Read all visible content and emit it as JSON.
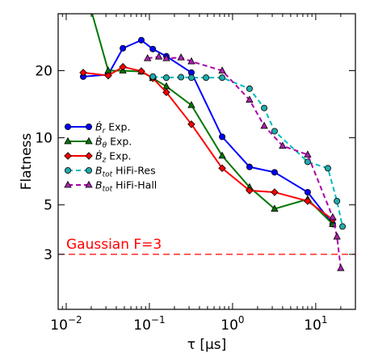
{
  "chart_data": {
    "type": "line",
    "xscale": "log",
    "yscale": "log",
    "xlim": [
      0.008,
      30
    ],
    "ylim": [
      1.7,
      36
    ],
    "xlabel": "τ [μs]",
    "ylabel": "Flatness",
    "x_ticks": [
      {
        "value": 0.01,
        "base": "10",
        "exp": "−2"
      },
      {
        "value": 0.1,
        "base": "10",
        "exp": "−1"
      },
      {
        "value": 1,
        "base": "10",
        "exp": "0"
      },
      {
        "value": 10,
        "base": "10",
        "exp": "1"
      }
    ],
    "y_ticks": [
      {
        "value": 3,
        "label": "3"
      },
      {
        "value": 5,
        "label": "5"
      },
      {
        "value": 10,
        "label": "10"
      },
      {
        "value": 20,
        "label": "20"
      }
    ],
    "reference_line": {
      "value": 3,
      "label": "Gaussian F=3",
      "color": "#ff0000"
    },
    "legend": {
      "placement": "center-left"
    },
    "series": [
      {
        "name_sym": "Ḃ",
        "name_sub": "r",
        "name_rest": " Exp.",
        "color": "#0000ff",
        "marker": "circle",
        "marker_color": "#0000ff",
        "dash": "solid",
        "x": [
          0.016,
          0.032,
          0.048,
          0.08,
          0.11,
          0.16,
          0.32,
          0.75,
          1.6,
          3.2,
          8.0,
          16
        ],
        "y": [
          18.8,
          19.2,
          25.2,
          27.4,
          25.0,
          23.2,
          19.6,
          10.1,
          7.4,
          7.0,
          5.7,
          4.1
        ]
      },
      {
        "name_sym": "Ḃ",
        "name_sub": "θ",
        "name_rest": " Exp.",
        "color": "#007700",
        "marker": "triangle",
        "marker_color": "#007700",
        "dash": "solid",
        "x": [
          0.016,
          0.032,
          0.048,
          0.08,
          0.11,
          0.16,
          0.32,
          0.75,
          1.6,
          3.2,
          8.0,
          16
        ],
        "y": [
          50.0,
          20.0,
          20.0,
          19.8,
          18.5,
          17.0,
          14.0,
          8.3,
          6.0,
          4.8,
          5.3,
          4.1
        ]
      },
      {
        "name_sym": "Ḃ",
        "name_sub": "z",
        "name_rest": " Exp.",
        "color": "#ff0000",
        "marker": "diamond",
        "marker_color": "#ff0000",
        "dash": "solid",
        "x": [
          0.016,
          0.032,
          0.048,
          0.08,
          0.11,
          0.16,
          0.32,
          0.75,
          1.6,
          3.2,
          8.0,
          16
        ],
        "y": [
          19.6,
          19.0,
          20.8,
          19.9,
          18.5,
          16.0,
          11.5,
          7.3,
          5.8,
          5.7,
          5.2,
          4.3
        ]
      },
      {
        "name_sym": "B",
        "name_sub": "tot",
        "name_rest": " HiFi-Res",
        "color": "#00bbbb",
        "marker": "circle",
        "marker_color": "#22aaaa",
        "dash": "6,4",
        "x": [
          0.11,
          0.16,
          0.24,
          0.32,
          0.48,
          0.75,
          1.6,
          2.4,
          3.2,
          8.0,
          14,
          18,
          21
        ],
        "y": [
          18.8,
          18.6,
          18.7,
          18.6,
          18.6,
          18.6,
          16.6,
          13.6,
          10.7,
          7.8,
          7.3,
          5.2,
          4.0
        ]
      },
      {
        "name_sym": "B",
        "name_sub": "tot",
        "name_rest": " HiFi-Hall",
        "color": "#aa00aa",
        "marker": "triangle",
        "marker_color": "#aa22aa",
        "dash": "6,4",
        "x": [
          0.095,
          0.13,
          0.16,
          0.24,
          0.32,
          0.75,
          1.6,
          2.4,
          4.0,
          8.0,
          16,
          18,
          20
        ],
        "y": [
          22.7,
          23.1,
          22.7,
          22.9,
          22.0,
          20.0,
          14.8,
          11.3,
          9.2,
          8.4,
          4.4,
          3.6,
          2.6
        ]
      }
    ]
  }
}
